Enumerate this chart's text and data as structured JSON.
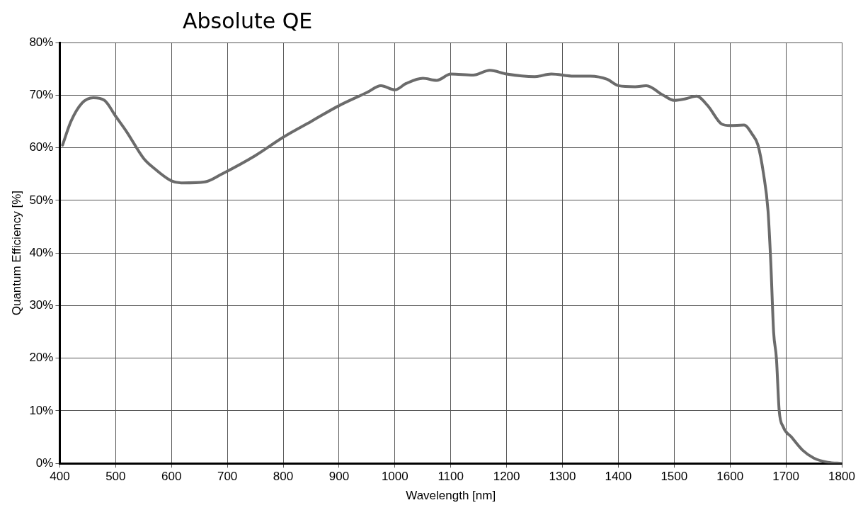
{
  "chart_data": {
    "type": "line",
    "title": "Absolute QE",
    "xlabel": "Wavelength [nm]",
    "ylabel": "Quantum Efficiency [%]",
    "xlim": [
      400,
      1800
    ],
    "xticks": [
      400,
      500,
      600,
      700,
      800,
      900,
      1000,
      1100,
      1200,
      1300,
      1400,
      1500,
      1600,
      1700,
      1800
    ],
    "ylim": [
      0,
      80
    ],
    "yticks": [
      {
        "value": 0,
        "label": "0%"
      },
      {
        "value": 10,
        "label": "10%"
      },
      {
        "value": 20,
        "label": "20%"
      },
      {
        "value": 30,
        "label": "30%"
      },
      {
        "value": 40,
        "label": "40%"
      },
      {
        "value": 50,
        "label": "50%"
      },
      {
        "value": 60,
        "label": "60%"
      },
      {
        "value": 70,
        "label": "70%"
      },
      {
        "value": 80,
        "label": "80%"
      }
    ],
    "grid": true,
    "legend": false,
    "marker": "none",
    "line_style": "solid",
    "series": [
      {
        "color": "#6b6b6b",
        "x": [
          405,
          420,
          440,
          460,
          480,
          500,
          520,
          550,
          570,
          600,
          620,
          660,
          690,
          750,
          800,
          850,
          900,
          950,
          975,
          1000,
          1020,
          1050,
          1075,
          1100,
          1140,
          1170,
          1200,
          1250,
          1280,
          1320,
          1350,
          1380,
          1400,
          1430,
          1450,
          1480,
          1500,
          1520,
          1540,
          1560,
          1585,
          1600,
          1625,
          1640,
          1650,
          1660,
          1668,
          1673,
          1678,
          1683,
          1688,
          1695,
          1710,
          1730,
          1750,
          1775,
          1800
        ],
        "values": [
          60.5,
          65,
          68.5,
          69.5,
          69,
          66,
          63,
          58,
          56,
          53.7,
          53.3,
          53.5,
          55,
          58.5,
          62,
          65,
          68,
          70.5,
          71.8,
          71,
          72.2,
          73.2,
          72.8,
          74,
          73.8,
          74.7,
          74,
          73.5,
          74,
          73.6,
          73.6,
          73,
          71.8,
          71.6,
          71.8,
          70,
          69,
          69.3,
          69.8,
          68,
          64.5,
          64.2,
          64.3,
          62.5,
          60.5,
          55,
          48,
          38,
          25,
          20,
          10,
          7,
          5,
          2.5,
          1,
          0.2,
          0
        ]
      }
    ]
  }
}
